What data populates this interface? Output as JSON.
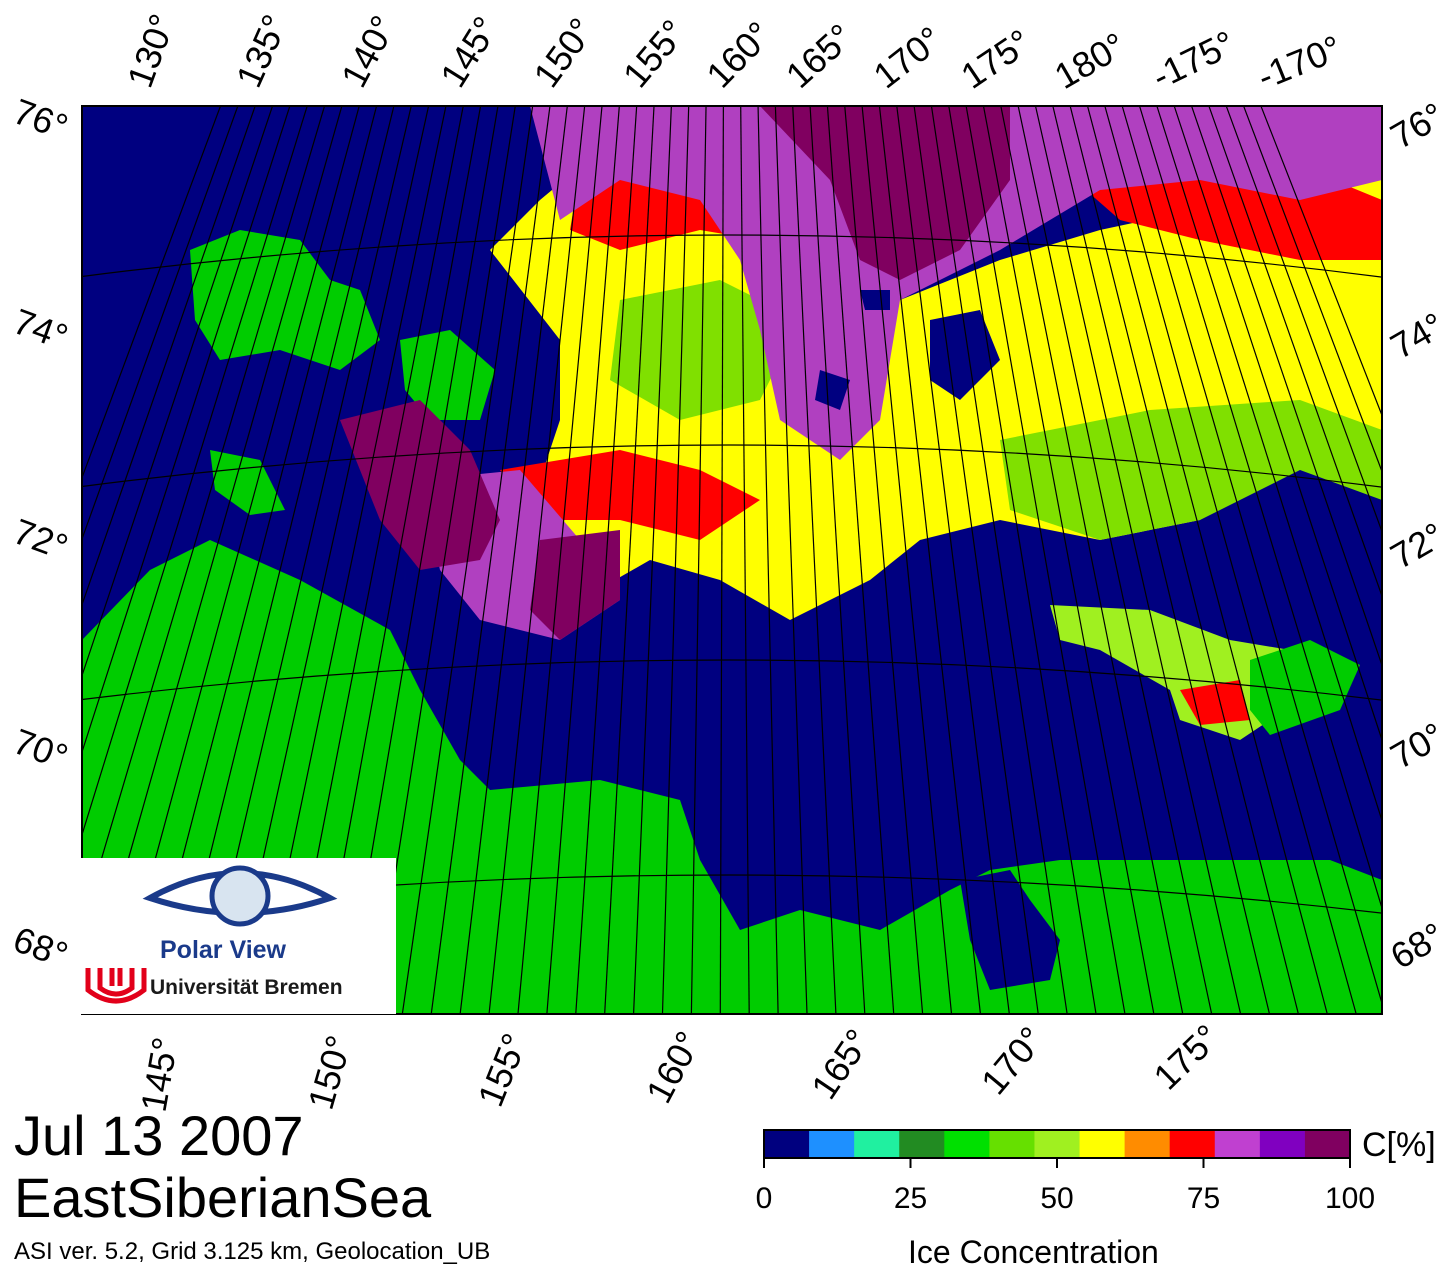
{
  "header": {
    "date": "Jul 13 2007",
    "region": "EastSiberianSea",
    "info": "ASI ver. 5.2,  Grid 3.125 km, Geolocation_UB"
  },
  "logo": {
    "title": "Polar View",
    "subtitle": "Universität Bremen"
  },
  "axes": {
    "top_longitudes": [
      "130°",
      "135°",
      "140°",
      "145°",
      "150°",
      "155°",
      "160°",
      "165°",
      "170°",
      "175°",
      "180°",
      "-175°",
      "-170°"
    ],
    "bottom_longitudes": [
      "145°",
      "150°",
      "155°",
      "160°",
      "165°",
      "170°",
      "175°"
    ],
    "left_latitudes": [
      "76°",
      "74°",
      "72°",
      "70°",
      "68°"
    ],
    "right_latitudes": [
      "76°",
      "74°",
      "72°",
      "70°",
      "68°"
    ]
  },
  "legend": {
    "title": "Ice Concentration",
    "unit": "C[%]",
    "ticks": [
      "0",
      "25",
      "50",
      "75",
      "100"
    ],
    "tick_values": [
      0,
      25,
      50,
      75,
      100
    ],
    "colors": [
      "#00007f",
      "#1e90ff",
      "#20f0a0",
      "#228b22",
      "#00e000",
      "#66e000",
      "#a0f020",
      "#ffff00",
      "#ff8c00",
      "#ff0000",
      "#c040d0",
      "#8000c0",
      "#800060"
    ]
  },
  "colors": {
    "ocean": "#000080",
    "land": "#00cc00",
    "land_dark": "#7f7f7f",
    "ice_high": "#800060",
    "ice_purple": "#b040c0",
    "ice_red": "#ff0000",
    "ice_yellow": "#ffff00",
    "ice_green": "#80e000"
  }
}
